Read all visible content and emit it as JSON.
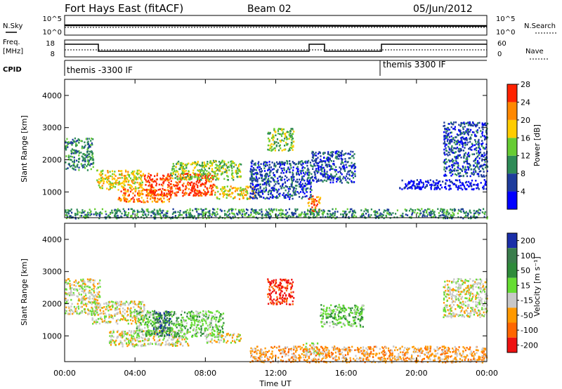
{
  "header": {
    "station": "Fort Hays East (fitACF)",
    "beam": "Beam 02",
    "date": "05/Jun/2012"
  },
  "time_axis": {
    "label": "Time UT",
    "ticks": [
      "00:00",
      "04:00",
      "08:00",
      "12:00",
      "16:00",
      "20:00",
      "00:00"
    ]
  },
  "noise_panel": {
    "left_label": "N.Sky",
    "right_label": "N.Search",
    "left_ticks": [
      "10^5",
      "10^0"
    ],
    "right_ticks": [
      "10^5",
      "10^0"
    ]
  },
  "freq_panel": {
    "left_label_1": "Freq.",
    "left_label_2": "[MHz]",
    "right_label": "Nave",
    "left_ticks": [
      "18",
      "8"
    ],
    "right_ticks": [
      "60",
      "0"
    ]
  },
  "cpid_panel": {
    "label": "CPID",
    "mode_1": "themis -3300 IF",
    "mode_2": "themis 3300 IF"
  },
  "chart_data": [
    {
      "type": "heatmap",
      "name": "power",
      "xlabel": "Time UT",
      "ylabel": "Slant Range [km]",
      "xlim": [
        0,
        24
      ],
      "ylim": [
        200,
        4500
      ],
      "yticks": [
        1000,
        2000,
        3000,
        4000
      ],
      "colorbar": {
        "label": "Power [dB]",
        "ticks": [
          "4",
          "8",
          "12",
          "16",
          "20",
          "24",
          "28"
        ],
        "colors": [
          "#0000ff",
          "#1e3c9c",
          "#2e8b57",
          "#66cc33",
          "#ffcc00",
          "#ff8800",
          "#ff2200"
        ]
      },
      "regions": [
        {
          "t": [
            0.0,
            1.6
          ],
          "r": [
            1700,
            2700
          ],
          "level": 2
        },
        {
          "t": [
            1.8,
            4.5
          ],
          "r": [
            1100,
            1700
          ],
          "level": 4
        },
        {
          "t": [
            3.0,
            6.0
          ],
          "r": [
            700,
            1100
          ],
          "level": 5
        },
        {
          "t": [
            4.5,
            8.5
          ],
          "r": [
            900,
            1600
          ],
          "level": 6
        },
        {
          "t": [
            6.0,
            10.0
          ],
          "r": [
            1400,
            2000
          ],
          "level": 3
        },
        {
          "t": [
            8.5,
            10.8
          ],
          "r": [
            800,
            1200
          ],
          "level": 4
        },
        {
          "t": [
            10.5,
            14.0
          ],
          "r": [
            800,
            2000
          ],
          "level": 1
        },
        {
          "t": [
            13.8,
            14.5
          ],
          "r": [
            400,
            900
          ],
          "level": 5
        },
        {
          "t": [
            11.5,
            13.0
          ],
          "r": [
            2300,
            3000
          ],
          "level": 3
        },
        {
          "t": [
            14.0,
            16.5
          ],
          "r": [
            1300,
            2300
          ],
          "level": 1
        },
        {
          "t": [
            19.0,
            24.0
          ],
          "r": [
            1100,
            1400
          ],
          "level": 0
        },
        {
          "t": [
            21.5,
            24.0
          ],
          "r": [
            1500,
            3200
          ],
          "level": 1
        },
        {
          "t": [
            0.0,
            24.0
          ],
          "r": [
            200,
            500
          ],
          "level": 2
        }
      ]
    },
    {
      "type": "heatmap",
      "name": "velocity",
      "xlabel": "Time UT",
      "ylabel": "Slant Range [km]",
      "xlim": [
        0,
        24
      ],
      "ylim": [
        200,
        4500
      ],
      "yticks": [
        1000,
        2000,
        3000,
        4000
      ],
      "colorbar": {
        "label": "Velocity [m s⁻¹]",
        "ticks": [
          "200",
          "100",
          "50",
          "15",
          "-15",
          "-50",
          "-100",
          "-200"
        ],
        "colors": [
          "#1a2ea8",
          "#3a7d4c",
          "#2e8b3a",
          "#66dd33",
          "#c8c8c8",
          "#ff9900",
          "#ff6600",
          "#ee1111"
        ]
      },
      "regions": [
        {
          "t": [
            0.0,
            2.0
          ],
          "r": [
            1700,
            2800
          ],
          "level": 4
        },
        {
          "t": [
            1.5,
            4.5
          ],
          "r": [
            1400,
            2100
          ],
          "level": 4
        },
        {
          "t": [
            2.5,
            7.0
          ],
          "r": [
            700,
            1200
          ],
          "level": 4
        },
        {
          "t": [
            4.0,
            9.0
          ],
          "r": [
            1000,
            1800
          ],
          "level": 3
        },
        {
          "t": [
            5.0,
            6.0
          ],
          "r": [
            1000,
            1800
          ],
          "level": 1
        },
        {
          "t": [
            8.0,
            10.0
          ],
          "r": [
            800,
            1100
          ],
          "level": 4
        },
        {
          "t": [
            11.5,
            13.0
          ],
          "r": [
            2000,
            2800
          ],
          "level": 7
        },
        {
          "t": [
            13.5,
            14.5
          ],
          "r": [
            400,
            800
          ],
          "level": 4
        },
        {
          "t": [
            14.5,
            17.0
          ],
          "r": [
            1300,
            2000
          ],
          "level": 3
        },
        {
          "t": [
            10.5,
            24.0
          ],
          "r": [
            200,
            700
          ],
          "level": 5
        },
        {
          "t": [
            21.5,
            24.0
          ],
          "r": [
            1600,
            2800
          ],
          "level": 4
        }
      ]
    }
  ]
}
